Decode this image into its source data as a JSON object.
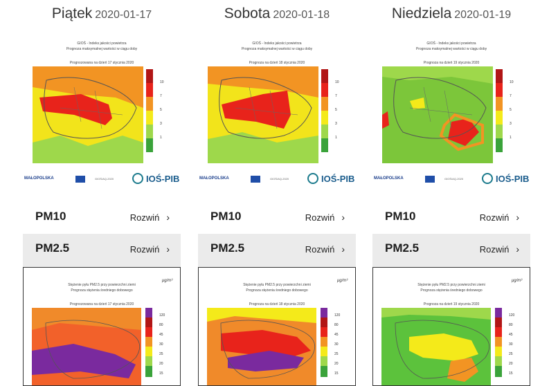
{
  "days": [
    {
      "name": "Piątek",
      "date": "2020-01-17",
      "pm10_map": {
        "title1": "GIOŚ - Indeks jakości powietrza",
        "title2": "Prognoza maksymalnej wartości w ciągu doby",
        "subtitle": "Prognozowana na dzień  17 stycznia 2020"
      },
      "pm10_label": "PM10",
      "pm10_expand": "Rozwiń",
      "pm25_label": "PM2.5",
      "pm25_expand": "Rozwiń",
      "pm25_map": {
        "title1": "Stężenie pyłu PM2.5 przy powierzchni ziemi",
        "title2": "Prognoza stężenia średniego dobowego",
        "subtitle": "Prognozowana na dzień  17 stycznia 2020"
      }
    },
    {
      "name": "Sobota",
      "date": "2020-01-18",
      "pm10_map": {
        "title1": "GIOŚ - Indeks jakości powietrza",
        "title2": "Prognoza maksymalnej wartości w ciągu doby",
        "subtitle": "Prognoza na dzień  18 stycznia 2020"
      },
      "pm10_label": "PM10",
      "pm10_expand": "Rozwiń",
      "pm25_label": "PM2.5",
      "pm25_expand": "Rozwiń",
      "pm25_map": {
        "title1": "Stężenie pyłu PM2.5 przy powierzchni ziemi",
        "title2": "Prognoza stężenia średniego dobowego",
        "subtitle": "Prognoza na dzień  18 stycznia 2020"
      }
    },
    {
      "name": "Niedziela",
      "date": "2020-01-19",
      "pm10_map": {
        "title1": "GIOŚ - Indeks jakości powietrza",
        "title2": "Prognoza maksymalnej wartości w ciągu doby",
        "subtitle": "Prognoza na dzień  19 stycznia 2020"
      },
      "pm10_label": "PM10",
      "pm10_expand": "Rozwiń",
      "pm25_label": "PM2.5",
      "pm25_expand": "Rozwiń",
      "pm25_map": {
        "title1": "Stężenie pyłu PM2.5 przy powierzchni ziemi",
        "title2": "Prognoza stężenia średniego dobowego",
        "subtitle": "Prognoza na dzień  19 stycznia 2020"
      }
    }
  ],
  "logos": {
    "malopolska": "MAŁOPOLSKA",
    "gios_code": "GIOŚ/AQ-2020",
    "ios": "IOŚ-PIB"
  },
  "pm10_scale": [
    "10",
    "7",
    "5",
    "3",
    "1"
  ],
  "pm25_unit": "μg/m³",
  "pm25_scale": [
    "120",
    "80",
    "45",
    "30",
    "25",
    "20",
    "15"
  ],
  "colors": {
    "red": "#e8231b",
    "orange": "#f29423",
    "yellow": "#f4ea1a",
    "lightgreen": "#9ed84b",
    "green": "#5cc23c",
    "purple": "#7a2a9e",
    "row_bg": "#ebebeb"
  }
}
